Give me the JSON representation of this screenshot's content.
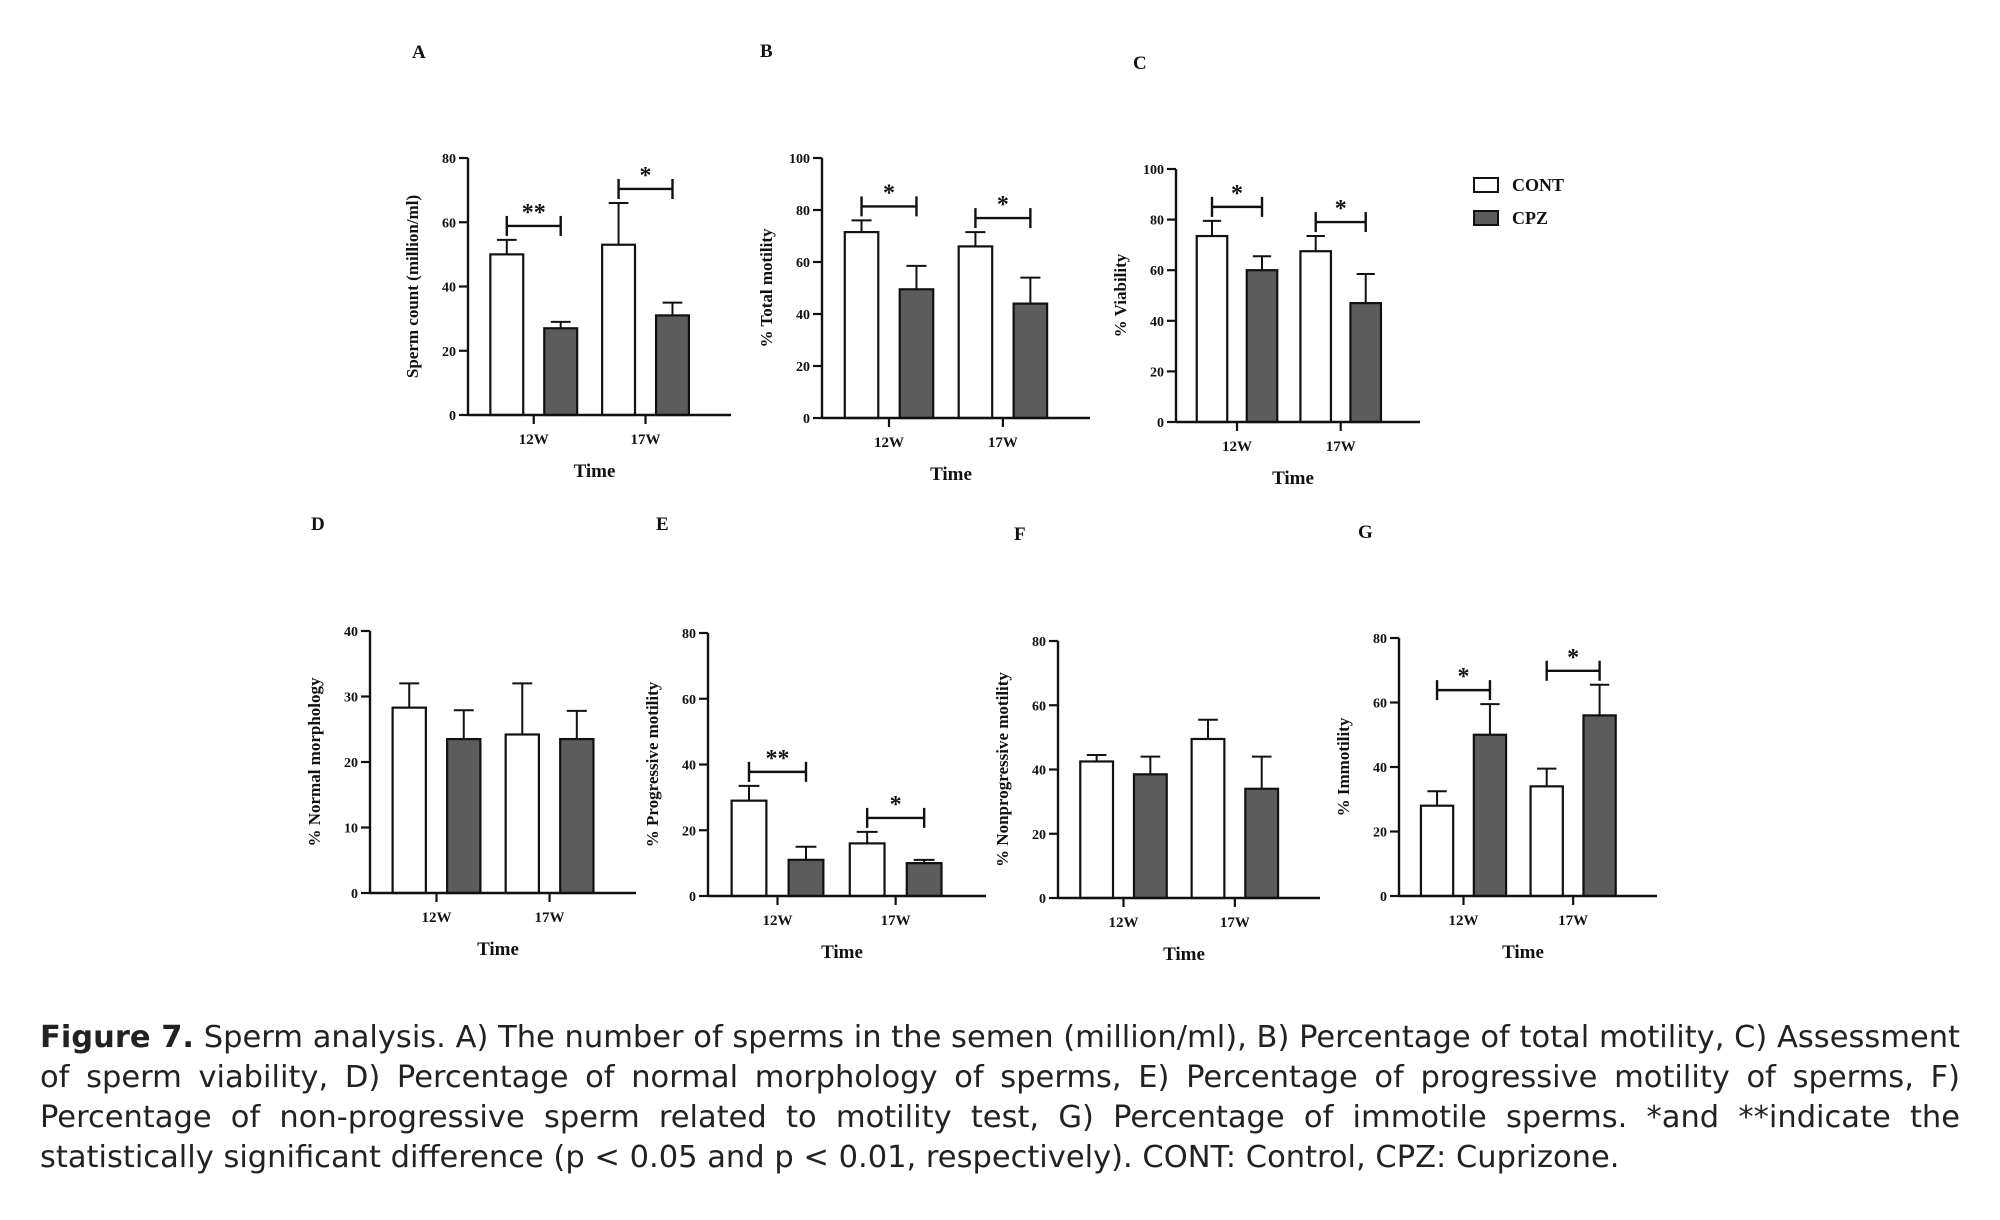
{
  "legend": {
    "entries": [
      {
        "label": "CONT",
        "color": "#ffffff"
      },
      {
        "label": "CPZ",
        "color": "#5c5c5c"
      }
    ]
  },
  "caption": {
    "label": "Figure 7.",
    "text": "Sperm analysis. A) The number of sperms in the semen (million/ml), B) Percentage of total motility, C) Assessment of sperm viability, D) Percentage of normal morphology of sperms, E) Percentage of progressive motility of sperms, F) Percentage of non-progressive sperm related to motility test, G) Percentage of immotile sperms. *and **indicate the statistically significant difference (p < 0.05 and p < 0.01, respectively). CONT: Control, CPZ: Cuprizone."
  },
  "chart_data": [
    {
      "panel": "A",
      "type": "bar",
      "xlabel": "Time",
      "ylabel": "Sperm count (million/ml)",
      "ylim": [
        0,
        80
      ],
      "yticks": [
        0,
        20,
        40,
        60,
        80
      ],
      "categories": [
        "12W",
        "17W"
      ],
      "series": [
        {
          "name": "CONT",
          "values": [
            50,
            53
          ],
          "errors": [
            4.5,
            13
          ]
        },
        {
          "name": "CPZ",
          "values": [
            27,
            31
          ],
          "errors": [
            2,
            4
          ]
        }
      ],
      "significance": [
        "**",
        "*"
      ]
    },
    {
      "panel": "B",
      "type": "bar",
      "xlabel": "Time",
      "ylabel": "% Total motility",
      "ylim": [
        0,
        100
      ],
      "yticks": [
        0,
        20,
        40,
        60,
        80,
        100
      ],
      "categories": [
        "12W",
        "17W"
      ],
      "series": [
        {
          "name": "CONT",
          "values": [
            71.5,
            66
          ],
          "errors": [
            4.5,
            5.5
          ]
        },
        {
          "name": "CPZ",
          "values": [
            49.5,
            44
          ],
          "errors": [
            9,
            10
          ]
        }
      ],
      "significance": [
        "*",
        "*"
      ]
    },
    {
      "panel": "C",
      "type": "bar",
      "xlabel": "Time",
      "ylabel": "% Viability",
      "ylim": [
        0,
        100
      ],
      "yticks": [
        0,
        20,
        40,
        60,
        80,
        100
      ],
      "categories": [
        "12W",
        "17W"
      ],
      "series": [
        {
          "name": "CONT",
          "values": [
            73.5,
            67.5
          ],
          "errors": [
            6,
            6
          ]
        },
        {
          "name": "CPZ",
          "values": [
            60,
            47
          ],
          "errors": [
            5.5,
            11.5
          ]
        }
      ],
      "significance": [
        "*",
        "*"
      ]
    },
    {
      "panel": "D",
      "type": "bar",
      "xlabel": "Time",
      "ylabel": "% Normal morphology",
      "ylim": [
        0,
        40
      ],
      "yticks": [
        0,
        10,
        20,
        30,
        40
      ],
      "categories": [
        "12W",
        "17W"
      ],
      "series": [
        {
          "name": "CONT",
          "values": [
            28.3,
            24.2
          ],
          "errors": [
            3.7,
            7.8
          ]
        },
        {
          "name": "CPZ",
          "values": [
            23.5,
            23.5
          ],
          "errors": [
            4.4,
            4.3
          ]
        }
      ],
      "significance": [
        "",
        ""
      ]
    },
    {
      "panel": "E",
      "type": "bar",
      "xlabel": "Time",
      "ylabel": "% Progressive motility",
      "ylim": [
        0,
        80
      ],
      "yticks": [
        0,
        20,
        40,
        60,
        80
      ],
      "categories": [
        "12W",
        "17W"
      ],
      "series": [
        {
          "name": "CONT",
          "values": [
            29,
            16
          ],
          "errors": [
            4.5,
            3.5
          ]
        },
        {
          "name": "CPZ",
          "values": [
            11,
            10
          ],
          "errors": [
            4,
            1
          ]
        }
      ],
      "significance": [
        "**",
        "*"
      ]
    },
    {
      "panel": "F",
      "type": "bar",
      "xlabel": "Time",
      "ylabel": "% Nonprogressive motility",
      "ylim": [
        0,
        80
      ],
      "yticks": [
        0,
        20,
        40,
        60,
        80
      ],
      "categories": [
        "12W",
        "17W"
      ],
      "series": [
        {
          "name": "CONT",
          "values": [
            42.5,
            49.5
          ],
          "errors": [
            2,
            6
          ]
        },
        {
          "name": "CPZ",
          "values": [
            38.5,
            34
          ],
          "errors": [
            5.5,
            10
          ]
        }
      ],
      "significance": [
        "",
        ""
      ]
    },
    {
      "panel": "G",
      "type": "bar",
      "xlabel": "Time",
      "ylabel": "% Immotility",
      "ylim": [
        0,
        80
      ],
      "yticks": [
        0,
        20,
        40,
        60,
        80
      ],
      "categories": [
        "12W",
        "17W"
      ],
      "series": [
        {
          "name": "CONT",
          "values": [
            28,
            34
          ],
          "errors": [
            4.5,
            5.5
          ]
        },
        {
          "name": "CPZ",
          "values": [
            50,
            56
          ],
          "errors": [
            9.5,
            9.5
          ]
        }
      ],
      "significance": [
        "*",
        "*"
      ]
    }
  ]
}
